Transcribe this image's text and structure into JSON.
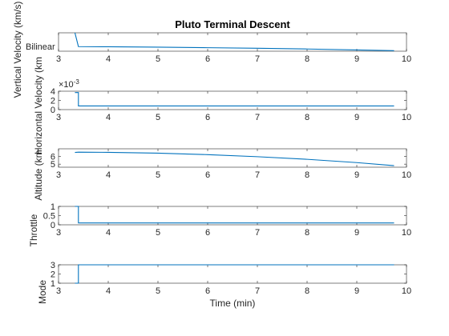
{
  "figure": {
    "title": "Pluto Terminal Descent",
    "xlabel": "Time (min)"
  },
  "chart_data": [
    {
      "type": "line",
      "panel": "vertical-velocity",
      "ylabel": "Vertical Velocity (km/s)",
      "xlim": [
        3,
        10
      ],
      "ylim": [
        0,
        0.1
      ],
      "xticks": [
        "3",
        "4",
        "5",
        "6",
        "7",
        "8",
        "9",
        "10"
      ],
      "yticks": [],
      "annotations": [
        "Bilinear"
      ],
      "grid": false,
      "series": [
        {
          "x": [
            3.33,
            3.4,
            4,
            5,
            6,
            7,
            8,
            9,
            9.75
          ],
          "y": [
            0.1,
            0.025,
            0.024,
            0.022,
            0.019,
            0.016,
            0.012,
            0.007,
            0.003
          ]
        }
      ]
    },
    {
      "type": "line",
      "panel": "horizontal-velocity",
      "ylabel": "Horizontal Velocity (km/s)",
      "ylabel_visible": "Horizontal Velocity (km",
      "xlim": [
        3,
        10
      ],
      "ylim": [
        0,
        4
      ],
      "y_exponent": "×10",
      "y_exponent_power": "-3",
      "xticks": [
        "3",
        "4",
        "5",
        "6",
        "7",
        "8",
        "9",
        "10"
      ],
      "yticks": [
        "0",
        "2",
        "4"
      ],
      "grid": false,
      "series": [
        {
          "x": [
            3.33,
            3.4,
            3.4,
            9.75
          ],
          "y": [
            3.7,
            3.7,
            0.8,
            0.8
          ]
        }
      ]
    },
    {
      "type": "line",
      "panel": "altitude",
      "ylabel": "Altitude (km)",
      "ylabel_visible": "Altitude (km",
      "xlim": [
        3,
        10
      ],
      "ylim": [
        4.6,
        7
      ],
      "xticks": [
        "3",
        "4",
        "5",
        "6",
        "7",
        "8",
        "9",
        "10"
      ],
      "yticks": [
        "5",
        "6"
      ],
      "grid": false,
      "series": [
        {
          "x": [
            3.33,
            3.4,
            4,
            5,
            6,
            7,
            8,
            9,
            9.75
          ],
          "y": [
            6.52,
            6.56,
            6.54,
            6.43,
            6.24,
            5.97,
            5.63,
            5.2,
            4.8
          ]
        }
      ]
    },
    {
      "type": "line",
      "panel": "throttle",
      "ylabel": "Throttle",
      "xlim": [
        3,
        10
      ],
      "ylim": [
        0,
        1
      ],
      "xticks": [
        "3",
        "4",
        "5",
        "6",
        "7",
        "8",
        "9",
        "10"
      ],
      "yticks": [
        "0",
        "0.5",
        "1"
      ],
      "grid": false,
      "series": [
        {
          "x": [
            3.33,
            3.4,
            3.4,
            9.75
          ],
          "y": [
            1,
            1,
            0.1,
            0.1
          ]
        }
      ]
    },
    {
      "type": "line",
      "panel": "mode",
      "ylabel": "Mode",
      "xlim": [
        3,
        10
      ],
      "ylim": [
        1,
        3
      ],
      "xticks": [
        "3",
        "4",
        "5",
        "6",
        "7",
        "8",
        "9",
        "10"
      ],
      "yticks": [
        "1",
        "2",
        "3"
      ],
      "grid": false,
      "series": [
        {
          "x": [
            3.33,
            3.4,
            3.4,
            9.75
          ],
          "y": [
            1,
            1,
            3,
            3
          ]
        }
      ]
    }
  ],
  "colors": {
    "line": "#0072bd",
    "axis": "#262626",
    "background": "#ffffff"
  }
}
